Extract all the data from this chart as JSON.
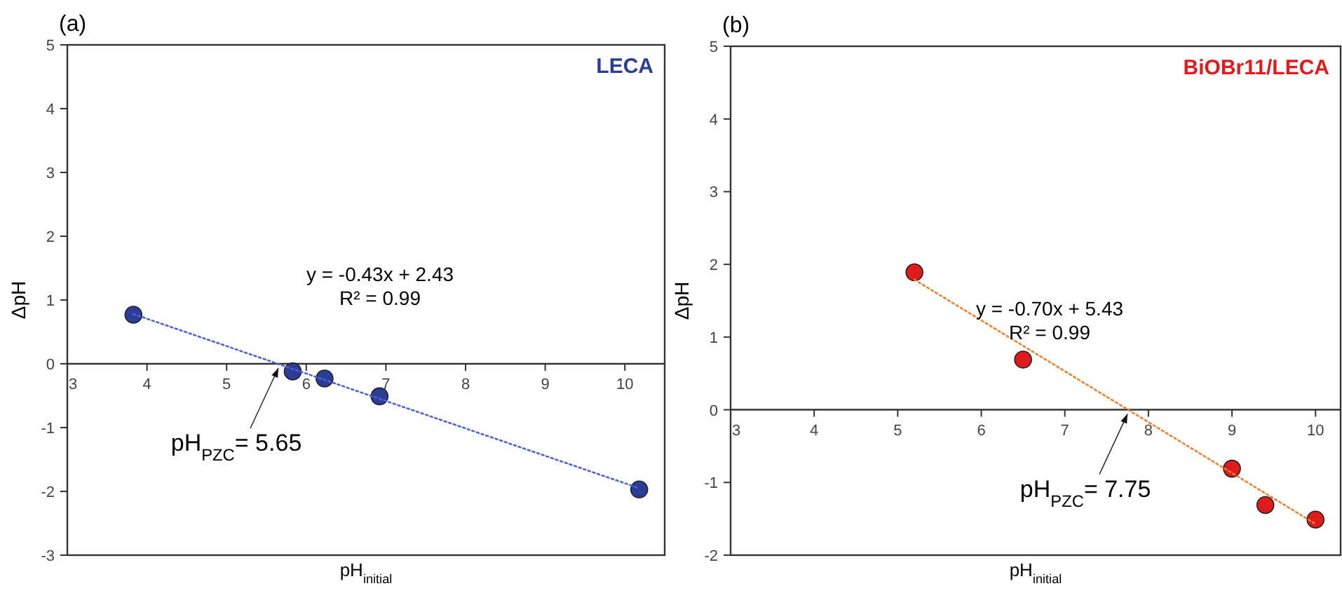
{
  "chart_data": [
    {
      "type": "scatter",
      "title": "(a)",
      "xlabel": "pH$_{initial}$",
      "ylabel": "ΔpH",
      "xlim": [
        3,
        10.5
      ],
      "ylim": [
        -3,
        5
      ],
      "xticks": [
        3,
        4,
        5,
        6,
        7,
        8,
        9,
        10
      ],
      "yticks": [
        -3,
        -2,
        -1,
        0,
        1,
        2,
        3,
        4,
        5
      ],
      "grid": false,
      "legend": false,
      "marker": "circle",
      "series": [
        {
          "name": "LECA",
          "color": "#2b3d96",
          "x": [
            3.83,
            5.83,
            6.23,
            6.92,
            10.18
          ],
          "values": [
            0.77,
            -0.12,
            -0.23,
            -0.51,
            -1.97
          ]
        },
        {
          "type": "line",
          "color": "#5060d8",
          "marker": "none",
          "line_style": "dotted",
          "x": [
            3.83,
            10.18
          ],
          "values": [
            0.78,
            -1.95
          ]
        }
      ],
      "annotations": [
        "y = -0.43x + 2.43",
        "R² = 0.99",
        {
          "text": "pH$_{PZC}$= 5.65",
          "x": 5.65,
          "y": 0
        }
      ]
    },
    {
      "type": "scatter",
      "title": "(b)",
      "xlabel": "pH$_{initial}$",
      "ylabel": "ΔpH",
      "xlim": [
        3,
        10.3
      ],
      "ylim": [
        -2,
        5
      ],
      "xticks": [
        3,
        4,
        5,
        6,
        7,
        8,
        9,
        10
      ],
      "yticks": [
        -2,
        -1,
        0,
        1,
        2,
        3,
        4,
        5
      ],
      "grid": false,
      "legend": false,
      "marker": "circle",
      "series": [
        {
          "name": "BiOBr11/LECA",
          "color": "#e01b1b",
          "x": [
            5.2,
            6.5,
            9.0,
            9.4,
            10.0
          ],
          "values": [
            1.89,
            0.69,
            -0.81,
            -1.31,
            -1.51
          ]
        },
        {
          "type": "line",
          "color": "#f08030",
          "marker": "none",
          "line_style": "dotted",
          "x": [
            5.2,
            10.0
          ],
          "values": [
            1.79,
            -1.57
          ]
        }
      ],
      "annotations": [
        "y = -0.70x + 5.43",
        "R² = 0.99",
        {
          "text": "pH$_{PZC}$= 7.75",
          "x": 7.75,
          "y": 0
        }
      ]
    }
  ]
}
